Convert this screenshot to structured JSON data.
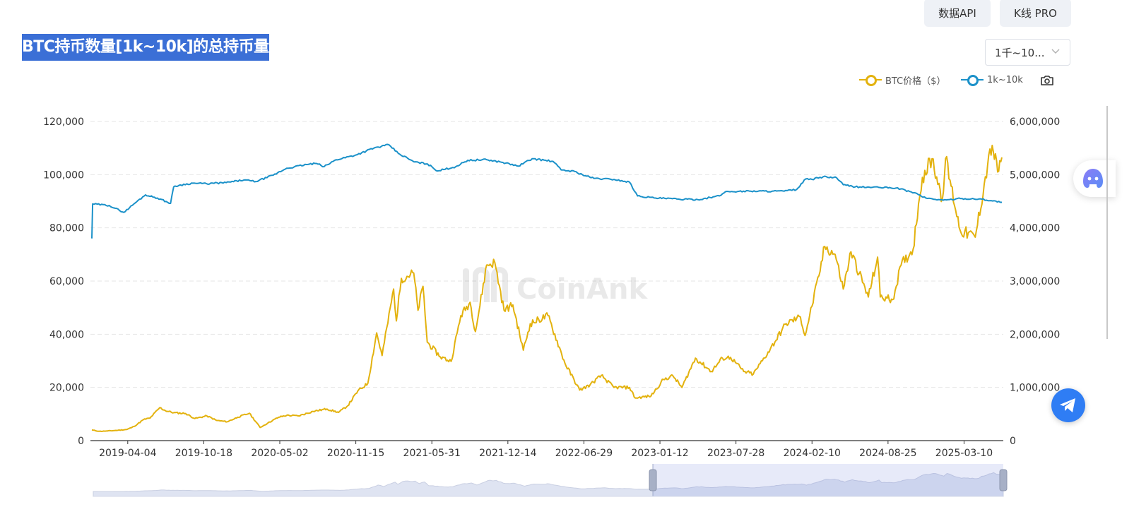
{
  "header": {
    "buttons": {
      "api": "数据API",
      "kline": "K线 PRO"
    },
    "title": "BTC持币数量[1k~10k]的总持币量",
    "range_select": "1千~10..."
  },
  "legend": {
    "price_label": "BTC价格（$）",
    "holdings_label": "1k~10k"
  },
  "icons": {
    "camera": "camera-icon",
    "ai": "ai-assistant-icon",
    "telegram": "telegram-icon",
    "chevron": "chevron-down-icon"
  },
  "colors": {
    "price": "#e3b20e",
    "holdings": "#1b91c9",
    "title_bg": "#3b6fd6",
    "telegram": "#2f7df4",
    "zoom_fill": "#e7ebf8"
  },
  "watermark": "CoinAnk",
  "chart_data": {
    "type": "line",
    "title": "BTC持币数量[1k~10k]的总持币量",
    "x_axis_ticks": [
      "2019-04-04",
      "2019-10-18",
      "2020-05-02",
      "2020-11-15",
      "2021-05-31",
      "2021-12-14",
      "2022-06-29",
      "2023-01-12",
      "2023-07-28",
      "2024-02-10",
      "2024-08-25",
      "2025-03-10"
    ],
    "y_left_ticks": [
      "120,000",
      "100,000",
      "80,000",
      "60,000",
      "40,000",
      "20,000",
      "0"
    ],
    "y_right_ticks": [
      "6,000,000",
      "5,000,000",
      "4,000,000",
      "3,000,000",
      "2,000,000",
      "1,000,000",
      "0"
    ],
    "y_left_range": [
      0,
      120000
    ],
    "y_right_range": [
      0,
      6000000
    ],
    "x_range": [
      "2019-01-01",
      "2025-06-16"
    ],
    "grid": "horizontal dashed",
    "legend_position": "top-right",
    "series": [
      {
        "name": "BTC价格（$）",
        "axis": "left",
        "points": [
          [
            "2019-01-01",
            4000
          ],
          [
            "2019-01-20",
            3500
          ],
          [
            "2019-02-10",
            3600
          ],
          [
            "2019-03-10",
            3900
          ],
          [
            "2019-04-02",
            4200
          ],
          [
            "2019-04-20",
            5300
          ],
          [
            "2019-05-15",
            7900
          ],
          [
            "2019-06-01",
            8500
          ],
          [
            "2019-06-26",
            12400
          ],
          [
            "2019-07-10",
            11300
          ],
          [
            "2019-08-01",
            10500
          ],
          [
            "2019-09-01",
            10200
          ],
          [
            "2019-09-25",
            8300
          ],
          [
            "2019-10-26",
            9300
          ],
          [
            "2019-11-20",
            7600
          ],
          [
            "2019-12-18",
            7100
          ],
          [
            "2020-01-14",
            8800
          ],
          [
            "2020-02-13",
            10300
          ],
          [
            "2020-03-12",
            4950
          ],
          [
            "2020-04-01",
            6600
          ],
          [
            "2020-04-29",
            8800
          ],
          [
            "2020-05-20",
            9500
          ],
          [
            "2020-06-20",
            9300
          ],
          [
            "2020-07-27",
            11000
          ],
          [
            "2020-09-01",
            11900
          ],
          [
            "2020-10-01",
            10600
          ],
          [
            "2020-10-25",
            13100
          ],
          [
            "2020-11-20",
            18600
          ],
          [
            "2020-12-16",
            21500
          ],
          [
            "2021-01-08",
            40500
          ],
          [
            "2021-01-22",
            32000
          ],
          [
            "2021-02-21",
            57000
          ],
          [
            "2021-02-28",
            45000
          ],
          [
            "2021-03-13",
            61000
          ],
          [
            "2021-04-14",
            63000
          ],
          [
            "2021-04-25",
            49000
          ],
          [
            "2021-05-08",
            58000
          ],
          [
            "2021-05-19",
            37000
          ],
          [
            "2021-06-22",
            31500
          ],
          [
            "2021-07-20",
            29800
          ],
          [
            "2021-08-14",
            47000
          ],
          [
            "2021-09-07",
            52000
          ],
          [
            "2021-09-21",
            41000
          ],
          [
            "2021-10-20",
            66000
          ],
          [
            "2021-11-10",
            67000
          ],
          [
            "2021-12-04",
            49000
          ],
          [
            "2021-12-27",
            51000
          ],
          [
            "2022-01-23",
            34000
          ],
          [
            "2022-02-10",
            44000
          ],
          [
            "2022-03-28",
            47000
          ],
          [
            "2022-05-11",
            29000
          ],
          [
            "2022-06-18",
            19000
          ],
          [
            "2022-07-15",
            21000
          ],
          [
            "2022-08-13",
            24500
          ],
          [
            "2022-09-15",
            20000
          ],
          [
            "2022-10-25",
            20000
          ],
          [
            "2022-11-09",
            16000
          ],
          [
            "2022-12-20",
            16800
          ],
          [
            "2023-01-21",
            23000
          ],
          [
            "2023-02-15",
            24300
          ],
          [
            "2023-03-10",
            20000
          ],
          [
            "2023-04-14",
            31000
          ],
          [
            "2023-05-25",
            26000
          ],
          [
            "2023-06-23",
            31000
          ],
          [
            "2023-07-14",
            31300
          ],
          [
            "2023-08-17",
            26000
          ],
          [
            "2023-09-11",
            25000
          ],
          [
            "2023-10-25",
            34500
          ],
          [
            "2023-12-05",
            44000
          ],
          [
            "2024-01-11",
            46500
          ],
          [
            "2024-01-23",
            39500
          ],
          [
            "2024-02-28",
            62000
          ],
          [
            "2024-03-14",
            73000
          ],
          [
            "2024-04-10",
            70000
          ],
          [
            "2024-05-01",
            57000
          ],
          [
            "2024-05-21",
            71000
          ],
          [
            "2024-07-05",
            54000
          ],
          [
            "2024-07-29",
            69000
          ],
          [
            "2024-08-05",
            54000
          ],
          [
            "2024-09-06",
            53000
          ],
          [
            "2024-09-28",
            66000
          ],
          [
            "2024-10-29",
            72000
          ],
          [
            "2024-11-12",
            89000
          ],
          [
            "2024-11-22",
            99000
          ],
          [
            "2024-12-17",
            106000
          ],
          [
            "2025-01-13",
            91000
          ],
          [
            "2025-01-21",
            106000
          ],
          [
            "2025-02-28",
            79000
          ],
          [
            "2025-04-08",
            76500
          ],
          [
            "2025-05-10",
            103500
          ],
          [
            "2025-05-22",
            111000
          ],
          [
            "2025-06-05",
            101000
          ],
          [
            "2025-06-16",
            106500
          ]
        ]
      },
      {
        "name": "1k~10k",
        "axis": "right",
        "points": [
          [
            "2019-01-01",
            3800000
          ],
          [
            "2019-01-03",
            4450000
          ],
          [
            "2019-02-15",
            4420000
          ],
          [
            "2019-03-25",
            4290000
          ],
          [
            "2019-04-20",
            4450000
          ],
          [
            "2019-05-20",
            4620000
          ],
          [
            "2019-06-20",
            4560000
          ],
          [
            "2019-07-24",
            4460000
          ],
          [
            "2019-08-01",
            4770000
          ],
          [
            "2019-08-15",
            4800000
          ],
          [
            "2019-09-20",
            4840000
          ],
          [
            "2019-10-25",
            4830000
          ],
          [
            "2019-12-15",
            4850000
          ],
          [
            "2020-01-30",
            4900000
          ],
          [
            "2020-03-01",
            4870000
          ],
          [
            "2020-04-15",
            4990000
          ],
          [
            "2020-05-20",
            5120000
          ],
          [
            "2020-07-10",
            5190000
          ],
          [
            "2020-08-05",
            5210000
          ],
          [
            "2020-08-25",
            5150000
          ],
          [
            "2020-09-25",
            5280000
          ],
          [
            "2020-11-15",
            5370000
          ],
          [
            "2021-01-01",
            5500000
          ],
          [
            "2021-02-09",
            5560000
          ],
          [
            "2021-03-05",
            5400000
          ],
          [
            "2021-04-15",
            5240000
          ],
          [
            "2021-05-20",
            5200000
          ],
          [
            "2021-06-15",
            5070000
          ],
          [
            "2021-08-01",
            5150000
          ],
          [
            "2021-09-01",
            5270000
          ],
          [
            "2021-10-20",
            5280000
          ],
          [
            "2021-12-01",
            5230000
          ],
          [
            "2022-01-10",
            5160000
          ],
          [
            "2022-02-15",
            5300000
          ],
          [
            "2022-04-10",
            5250000
          ],
          [
            "2022-05-01",
            5090000
          ],
          [
            "2022-06-05",
            5060000
          ],
          [
            "2022-06-25",
            5000000
          ],
          [
            "2022-07-25",
            4930000
          ],
          [
            "2022-09-15",
            4910000
          ],
          [
            "2022-10-25",
            4860000
          ],
          [
            "2022-11-15",
            4600000
          ],
          [
            "2023-01-01",
            4560000
          ],
          [
            "2023-03-01",
            4540000
          ],
          [
            "2023-04-20",
            4530000
          ],
          [
            "2023-06-15",
            4600000
          ],
          [
            "2023-07-01",
            4680000
          ],
          [
            "2023-09-01",
            4690000
          ],
          [
            "2023-11-30",
            4690000
          ],
          [
            "2024-01-01",
            4720000
          ],
          [
            "2024-01-25",
            4920000
          ],
          [
            "2024-02-10",
            4910000
          ],
          [
            "2024-03-10",
            4960000
          ],
          [
            "2024-04-14",
            4940000
          ],
          [
            "2024-05-01",
            4810000
          ],
          [
            "2024-06-01",
            4770000
          ],
          [
            "2024-08-01",
            4760000
          ],
          [
            "2024-09-15",
            4750000
          ],
          [
            "2024-11-01",
            4660000
          ],
          [
            "2024-12-01",
            4560000
          ],
          [
            "2025-01-15",
            4520000
          ],
          [
            "2025-03-01",
            4550000
          ],
          [
            "2025-04-25",
            4540000
          ],
          [
            "2025-06-16",
            4480000
          ]
        ]
      }
    ],
    "zoom_window": [
      "2023-01-12",
      "2025-06-16"
    ]
  }
}
